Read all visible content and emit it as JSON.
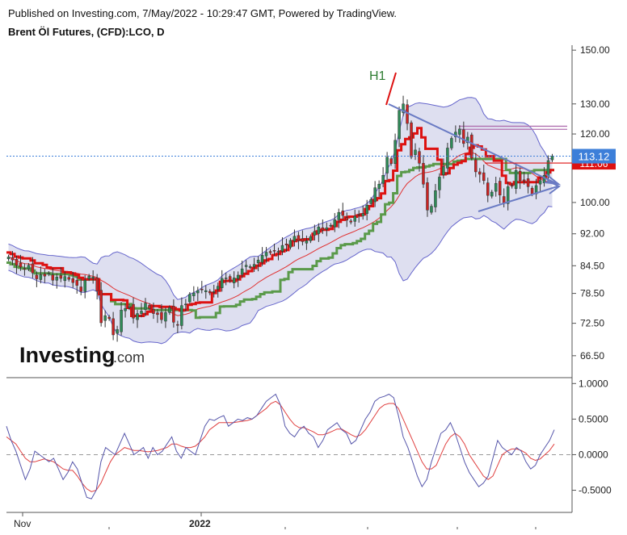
{
  "header": {
    "published_line": "Published on Investing.com, 7/May/2022 - 10:29:47 GMT, Powered by TradingView.",
    "instrument_line": "Brent Öl Futures, (CFD):LCO, D"
  },
  "watermark": {
    "text": "Investing",
    "suffix": ".com"
  },
  "colors": {
    "bull": "#2e8b57",
    "bear": "#cc2222",
    "bb_band": "#6666cc",
    "bb_fill": "#dedff0",
    "ma": "#e03030",
    "tenkan_red": "#dd1111",
    "kijun_green": "#5a9a4a",
    "trend_line": "#6a7bc4",
    "hline": "#b070b0",
    "price_label_bg": "#3d7fd9",
    "red_label_bg": "#dd1111",
    "osc_main": "#5555aa",
    "osc_signal": "#e04040"
  },
  "chart_data": [
    {
      "type": "candlestick",
      "title": "Brent Öl Futures, (CFD):LCO, D",
      "x_tick_labels": [
        "Nov",
        "2022"
      ],
      "y_ticks": [
        150.0,
        130.0,
        120.0,
        100.0,
        92.0,
        84.5,
        78.5,
        72.5,
        66.5
      ],
      "y_tick_labels": [
        "150.00",
        "130.00",
        "120.00",
        "100.00",
        "92.00",
        "84.50",
        "78.50",
        "72.50",
        "66.50"
      ],
      "ylim": [
        63,
        152
      ],
      "y_scale": "log",
      "last_price": 113.12,
      "last_price_label": "113.12",
      "red_level": 111.06,
      "red_level_label": "111.06",
      "horizontal_lines": [
        122.5,
        121.5
      ],
      "annotation": {
        "text": "H1",
        "near_close": 139
      },
      "candles_close": [
        86.5,
        85.8,
        84.6,
        84.2,
        83.8,
        84.6,
        82.9,
        81.6,
        82.5,
        82.2,
        82.8,
        81.3,
        82.0,
        81.7,
        82.1,
        81.5,
        80.8,
        80.2,
        78.9,
        81.3,
        82.2,
        82.0,
        79.0,
        72.6,
        74.0,
        73.4,
        70.3,
        71.3,
        75.1,
        75.4,
        75.8,
        73.5,
        74.4,
        74.9,
        76.5,
        75.4,
        74.4,
        74.2,
        73.2,
        74.6,
        75.6,
        72.7,
        72.2,
        76.0,
        76.3,
        78.3,
        78.6,
        79.1,
        79.3,
        79.1,
        78.6,
        78.9,
        80.0,
        81.7,
        81.8,
        81.2,
        81.8,
        82.4,
        83.8,
        84.6,
        84.3,
        84.8,
        85.8,
        86.9,
        87.6,
        87.5,
        88.0,
        87.8,
        89.2,
        89.3,
        90.4,
        91.4,
        90.3,
        90.1,
        90.3,
        91.3,
        92.6,
        93.7,
        92.9,
        93.5,
        94.1,
        95.5,
        97.4,
        96.6,
        95.4,
        94.9,
        96.4,
        96.9,
        97.1,
        99.3,
        100.8,
        104.0,
        105.0,
        107.5,
        112.8,
        110.9,
        118.0,
        127.8,
        130.0,
        123.4,
        112.9,
        115.0,
        111.0,
        105.0,
        98.0,
        99.0,
        103.2,
        107.0,
        110.0,
        115.6,
        118.6,
        120.6,
        121.6,
        117.0,
        119.0,
        112.5,
        108.5,
        107.8,
        106.0,
        101.9,
        102.8,
        105.2,
        102.0,
        99.7,
        104.3,
        104.4,
        108.9,
        106.0,
        105.9,
        104.3,
        102.3,
        104.6,
        106.0,
        107.5,
        111.8,
        113.12
      ]
    },
    {
      "type": "line",
      "y_ticks": [
        1.0,
        0.5,
        0.0,
        -0.5
      ],
      "y_tick_labels": [
        "1.0000",
        "0.5000",
        "0.0000",
        "-0.5000"
      ],
      "ylim": [
        -0.8,
        1.06
      ],
      "zero_line": 0.0,
      "series": [
        {
          "values": [
            0.4,
            0.2,
            0.05,
            -0.15,
            -0.35,
            -0.2,
            0.05,
            0.0,
            -0.05,
            -0.1,
            -0.05,
            -0.2,
            -0.35,
            -0.25,
            -0.1,
            -0.2,
            -0.4,
            -0.6,
            -0.62,
            -0.5,
            -0.1,
            0.1,
            0.05,
            0.0,
            0.15,
            0.3,
            0.15,
            0.0,
            0.05,
            0.1,
            -0.05,
            0.1,
            0.0,
            0.05,
            0.15,
            0.25,
            0.05,
            -0.05,
            0.1,
            0.05,
            0.0,
            0.2,
            0.4,
            0.5,
            0.48,
            0.52,
            0.55,
            0.4,
            0.45,
            0.5,
            0.48,
            0.52,
            0.5,
            0.55,
            0.65,
            0.75,
            0.8,
            0.85,
            0.7,
            0.4,
            0.3,
            0.25,
            0.35,
            0.4,
            0.3,
            0.25,
            0.1,
            0.2,
            0.35,
            0.4,
            0.45,
            0.35,
            0.3,
            0.15,
            0.2,
            0.35,
            0.5,
            0.6,
            0.75,
            0.8,
            0.82,
            0.85,
            0.8,
            0.55,
            0.25,
            0.1,
            -0.1,
            -0.3,
            -0.45,
            -0.35,
            -0.1,
            0.1,
            0.3,
            0.35,
            0.45,
            0.3,
            0.1,
            -0.1,
            -0.25,
            -0.35,
            -0.45,
            -0.4,
            -0.3,
            -0.05,
            0.2,
            0.1,
            0.05,
            0.0,
            0.1,
            0.05,
            -0.1,
            -0.2,
            -0.15,
            0.0,
            0.1,
            0.2,
            0.35
          ]
        },
        {
          "values": [
            0.25,
            0.2,
            0.15,
            0.05,
            -0.05,
            -0.1,
            -0.1,
            -0.08,
            -0.06,
            -0.08,
            -0.1,
            -0.15,
            -0.2,
            -0.22,
            -0.22,
            -0.3,
            -0.4,
            -0.48,
            -0.52,
            -0.5,
            -0.4,
            -0.25,
            -0.1,
            0.0,
            0.05,
            0.1,
            0.08,
            0.06,
            0.06,
            0.05,
            0.04,
            0.05,
            0.06,
            0.08,
            0.1,
            0.15,
            0.15,
            0.12,
            0.1,
            0.1,
            0.12,
            0.18,
            0.25,
            0.35,
            0.4,
            0.45,
            0.45,
            0.45,
            0.45,
            0.46,
            0.47,
            0.48,
            0.5,
            0.55,
            0.6,
            0.65,
            0.72,
            0.75,
            0.7,
            0.6,
            0.5,
            0.42,
            0.38,
            0.38,
            0.35,
            0.32,
            0.28,
            0.28,
            0.3,
            0.33,
            0.36,
            0.36,
            0.32,
            0.28,
            0.25,
            0.28,
            0.35,
            0.45,
            0.55,
            0.65,
            0.7,
            0.72,
            0.72,
            0.65,
            0.5,
            0.35,
            0.2,
            0.05,
            -0.1,
            -0.2,
            -0.2,
            -0.15,
            0.0,
            0.15,
            0.25,
            0.3,
            0.25,
            0.15,
            0.0,
            -0.1,
            -0.2,
            -0.3,
            -0.35,
            -0.3,
            -0.15,
            0.0,
            0.05,
            0.08,
            0.08,
            0.06,
            0.02,
            -0.05,
            -0.08,
            -0.06,
            0.0,
            0.06,
            0.15
          ]
        }
      ]
    }
  ]
}
